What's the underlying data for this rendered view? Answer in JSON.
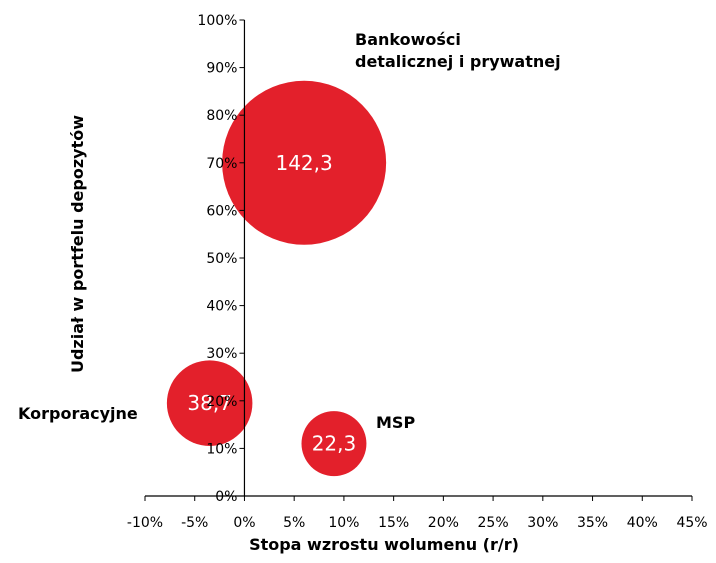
{
  "chart_data": {
    "type": "bubble",
    "xlabel": "Stopa wzrostu wolumenu (r/r)",
    "ylabel": "Udział w portfelu depozytów",
    "xlim": [
      -10,
      45
    ],
    "ylim": [
      0,
      100
    ],
    "x_ticks": [
      "-10%",
      "-5%",
      "0%",
      "5%",
      "10%",
      "15%",
      "20%",
      "25%",
      "30%",
      "35%",
      "40%",
      "45%"
    ],
    "y_ticks": [
      "0%",
      "10%",
      "20%",
      "30%",
      "40%",
      "50%",
      "60%",
      "70%",
      "80%",
      "90%",
      "100%"
    ],
    "grid": false,
    "colors": {
      "bubble": "#e3202b",
      "axis": "#000000",
      "bubble_label": "#ffffff"
    },
    "series": [
      {
        "name": "Bankowości detalicznej i prywatnej",
        "name_lines": [
          "Bankowości",
          "detalicznej i prywatnej"
        ],
        "x": 6,
        "y": 70,
        "size": 142.3,
        "value_label": "142,3"
      },
      {
        "name": "Korporacyjne",
        "name_lines": [
          "Korporacyjne"
        ],
        "x": -3.5,
        "y": 19.5,
        "size": 38.7,
        "value_label": "38,7"
      },
      {
        "name": "MSP",
        "name_lines": [
          "MSP"
        ],
        "x": 9,
        "y": 11,
        "size": 22.3,
        "value_label": "22,3"
      }
    ]
  }
}
